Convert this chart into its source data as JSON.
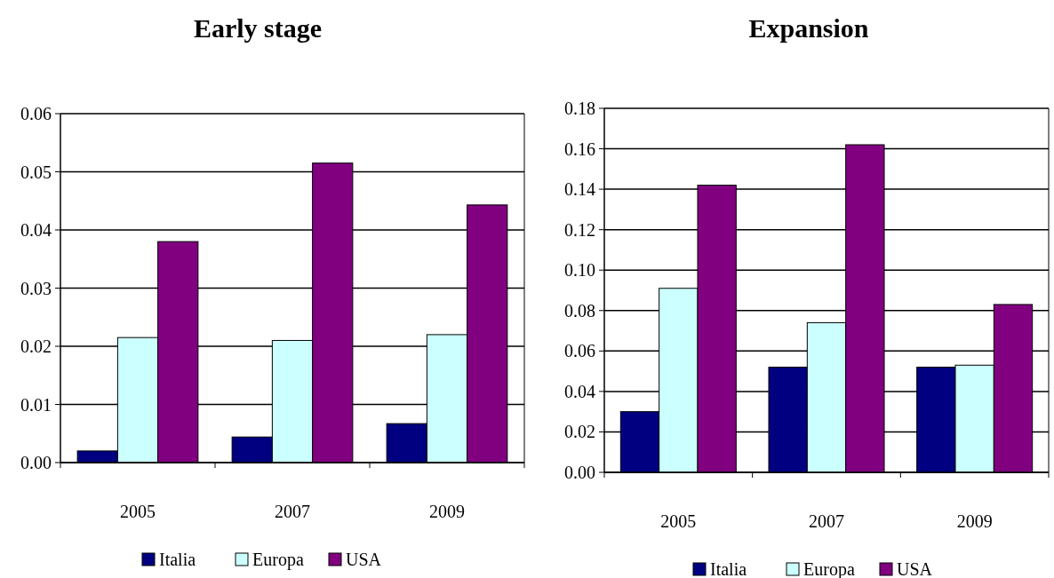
{
  "chart_data": [
    {
      "type": "bar",
      "title": "Early stage",
      "categories": [
        "2005",
        "2007",
        "2009"
      ],
      "ylim": [
        0,
        0.06
      ],
      "yticks": [
        {
          "value": 0,
          "label": "0.00"
        },
        {
          "value": 0.01,
          "label": "0.01"
        },
        {
          "value": 0.02,
          "label": "0.02"
        },
        {
          "value": 0.03,
          "label": "0.03"
        },
        {
          "value": 0.04,
          "label": "0.04"
        },
        {
          "value": 0.05,
          "label": "0.05"
        },
        {
          "value": 0.06,
          "label": "0.06"
        }
      ],
      "grid": "y",
      "legend": "bottom",
      "series": [
        {
          "name": "Italia",
          "color": "#000080",
          "values": [
            0.002,
            0.0044,
            0.0067
          ]
        },
        {
          "name": "Europa",
          "color": "#ccffff",
          "values": [
            0.0215,
            0.021,
            0.022
          ]
        },
        {
          "name": "USA",
          "color": "#800080",
          "values": [
            0.038,
            0.0515,
            0.0443
          ]
        }
      ]
    },
    {
      "type": "bar",
      "title": "Expansion",
      "categories": [
        "2005",
        "2007",
        "2009"
      ],
      "ylim": [
        0,
        0.18
      ],
      "yticks": [
        {
          "value": 0,
          "label": "0.00"
        },
        {
          "value": 0.02,
          "label": "0.02"
        },
        {
          "value": 0.04,
          "label": "0.04"
        },
        {
          "value": 0.06,
          "label": "0.06"
        },
        {
          "value": 0.08,
          "label": "0.08"
        },
        {
          "value": 0.1,
          "label": "0.10"
        },
        {
          "value": 0.12,
          "label": "0.12"
        },
        {
          "value": 0.14,
          "label": "0.14"
        },
        {
          "value": 0.16,
          "label": "0.16"
        },
        {
          "value": 0.18,
          "label": "0.18"
        }
      ],
      "grid": "y",
      "legend": "bottom",
      "series": [
        {
          "name": "Italia",
          "color": "#000080",
          "values": [
            0.03,
            0.052,
            0.052
          ]
        },
        {
          "name": "Europa",
          "color": "#ccffff",
          "values": [
            0.091,
            0.074,
            0.053
          ]
        },
        {
          "name": "USA",
          "color": "#800080",
          "values": [
            0.142,
            0.162,
            0.083
          ]
        }
      ]
    }
  ]
}
